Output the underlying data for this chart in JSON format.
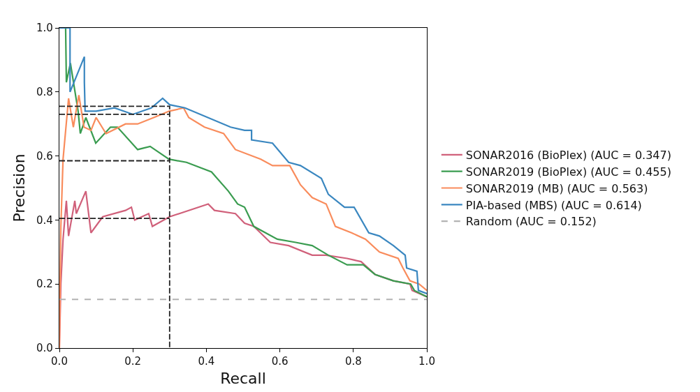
{
  "chart_data": {
    "type": "line",
    "xlabel": "Recall",
    "ylabel": "Precision",
    "xlim": [
      0,
      1
    ],
    "ylim": [
      0,
      1.0
    ],
    "xticks": [
      {
        "value": 0,
        "label": "0.0"
      },
      {
        "value": 0.2,
        "label": "0.2"
      },
      {
        "value": 0.4,
        "label": "0.4"
      },
      {
        "value": 0.6,
        "label": "0.6"
      },
      {
        "value": 0.8,
        "label": "0.8"
      },
      {
        "value": 1,
        "label": "1.0"
      }
    ],
    "yticks": [
      {
        "value": 0,
        "label": "0.0"
      },
      {
        "value": 0.2,
        "label": "0.2"
      },
      {
        "value": 0.4,
        "label": "0.4"
      },
      {
        "value": 0.6,
        "label": "0.6"
      },
      {
        "value": 0.8,
        "label": "0.8"
      },
      {
        "value": 1,
        "label": "1.0"
      }
    ],
    "grid": false,
    "legend": "right",
    "marker": "none",
    "line_style": "solid",
    "series": [
      {
        "name": "SONAR2016 (BioPlex) (AUC = 0.347)",
        "color": "#d0607a",
        "x": [
          0,
          0.004,
          0.01,
          0.019,
          0.025,
          0.042,
          0.046,
          0.072,
          0.086,
          0.118,
          0.18,
          0.196,
          0.205,
          0.243,
          0.253,
          0.3,
          0.405,
          0.422,
          0.479,
          0.504,
          0.529,
          0.574,
          0.624,
          0.688,
          0.726,
          0.783,
          0.821,
          0.859,
          0.909,
          0.954,
          0.96,
          1.0
        ],
        "values": [
          0,
          0.2,
          0.34,
          0.46,
          0.35,
          0.46,
          0.42,
          0.49,
          0.36,
          0.41,
          0.43,
          0.44,
          0.4,
          0.42,
          0.38,
          0.41,
          0.45,
          0.43,
          0.42,
          0.39,
          0.38,
          0.33,
          0.32,
          0.29,
          0.29,
          0.28,
          0.27,
          0.23,
          0.21,
          0.2,
          0.18,
          0.16
        ]
      },
      {
        "name": "SONAR2019 (BioPlex) (AUC = 0.455)",
        "color": "#3a9c50",
        "x": [
          0,
          0.017,
          0.019,
          0.03,
          0.051,
          0.057,
          0.072,
          0.099,
          0.139,
          0.158,
          0.213,
          0.247,
          0.298,
          0.346,
          0.414,
          0.46,
          0.485,
          0.504,
          0.529,
          0.593,
          0.643,
          0.688,
          0.732,
          0.783,
          0.827,
          0.859,
          0.909,
          0.956,
          0.966,
          1.0
        ],
        "values": [
          1.0,
          1.0,
          0.83,
          0.89,
          0.74,
          0.67,
          0.72,
          0.64,
          0.69,
          0.69,
          0.62,
          0.63,
          0.59,
          0.58,
          0.55,
          0.49,
          0.45,
          0.44,
          0.38,
          0.34,
          0.33,
          0.32,
          0.29,
          0.26,
          0.26,
          0.23,
          0.21,
          0.2,
          0.18,
          0.16
        ]
      },
      {
        "name": "SONAR2019 (MB) (AUC = 0.563)",
        "color": "#f98c5c",
        "x": [
          0,
          0.004,
          0.01,
          0.025,
          0.038,
          0.053,
          0.067,
          0.086,
          0.1,
          0.127,
          0.18,
          0.213,
          0.257,
          0.299,
          0.338,
          0.352,
          0.395,
          0.447,
          0.479,
          0.548,
          0.58,
          0.627,
          0.656,
          0.688,
          0.726,
          0.751,
          0.795,
          0.833,
          0.871,
          0.922,
          0.935,
          0.954,
          0.979,
          1.0
        ],
        "values": [
          0,
          0.38,
          0.59,
          0.78,
          0.69,
          0.79,
          0.69,
          0.68,
          0.72,
          0.67,
          0.7,
          0.7,
          0.72,
          0.74,
          0.75,
          0.72,
          0.69,
          0.67,
          0.62,
          0.59,
          0.57,
          0.57,
          0.51,
          0.47,
          0.45,
          0.38,
          0.36,
          0.34,
          0.3,
          0.28,
          0.25,
          0.21,
          0.2,
          0.18
        ]
      },
      {
        "name": "PIA-based (MBS) (AUC = 0.614)",
        "color": "#3a87c0",
        "x": [
          0,
          0.029,
          0.029,
          0.068,
          0.068,
          0.07,
          0.1,
          0.15,
          0.2,
          0.25,
          0.281,
          0.3,
          0.342,
          0.466,
          0.504,
          0.523,
          0.523,
          0.58,
          0.624,
          0.656,
          0.713,
          0.732,
          0.776,
          0.802,
          0.842,
          0.871,
          0.909,
          0.941,
          0.945,
          0.973,
          0.977,
          1.0
        ],
        "values": [
          1.0,
          1.0,
          0.8,
          0.91,
          0.83,
          0.74,
          0.74,
          0.75,
          0.73,
          0.75,
          0.78,
          0.76,
          0.75,
          0.69,
          0.68,
          0.68,
          0.65,
          0.64,
          0.58,
          0.57,
          0.53,
          0.48,
          0.44,
          0.44,
          0.36,
          0.35,
          0.32,
          0.29,
          0.25,
          0.24,
          0.18,
          0.17
        ]
      },
      {
        "name": "Random (AUC = 0.152)",
        "color": "#b3b3b3",
        "line_style": "dashed",
        "x": [
          0,
          1
        ],
        "values": [
          0.152,
          0.152
        ]
      },
      {
        "color": "#222222",
        "line_style": "dashed",
        "x": [
          0,
          0.3,
          0.3
        ],
        "values": [
          0.755,
          0.755,
          0
        ]
      },
      {
        "color": "#222222",
        "line_style": "dashed",
        "x": [
          0,
          0.3
        ],
        "values": [
          0.73,
          0.73
        ]
      },
      {
        "color": "#222222",
        "line_style": "dashed",
        "x": [
          0,
          0.3
        ],
        "values": [
          0.585,
          0.585
        ]
      },
      {
        "color": "#222222",
        "line_style": "dashed",
        "x": [
          0,
          0.3
        ],
        "values": [
          0.405,
          0.405
        ]
      }
    ]
  }
}
